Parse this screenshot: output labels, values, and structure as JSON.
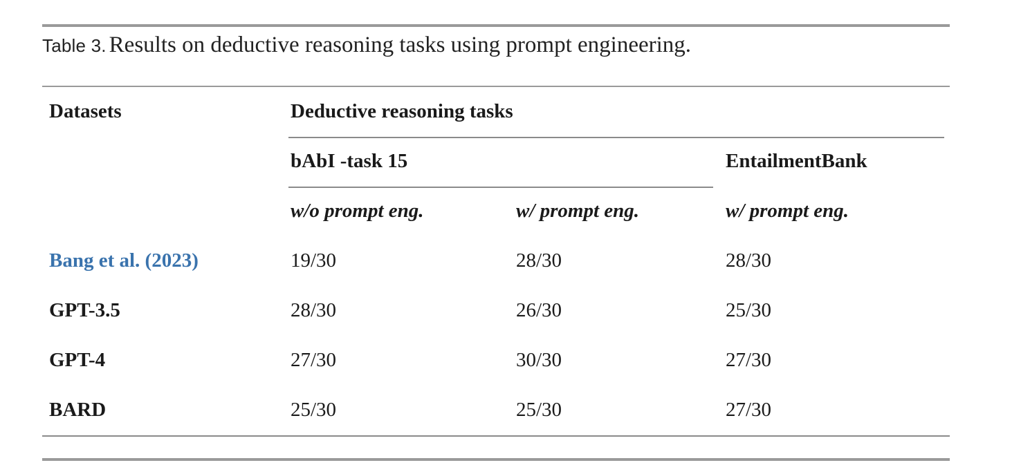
{
  "caption": {
    "label": "Table 3.",
    "text": "Results on deductive reasoning tasks using prompt engineering."
  },
  "header": {
    "datasets": "Datasets",
    "group": "Deductive reasoning tasks",
    "babi": "bAbI -task 15",
    "entailment": "EntailmentBank",
    "sub_babi_wo": "w/o prompt eng.",
    "sub_babi_w": "w/ prompt eng.",
    "sub_entail_w": "w/ prompt eng."
  },
  "rows": [
    {
      "model": "Bang et al. (2023)",
      "is_link": true,
      "babi_wo": "19/30",
      "babi_w": "28/30",
      "entail_w": "28/30"
    },
    {
      "model": "GPT-3.5",
      "is_link": false,
      "babi_wo": "28/30",
      "babi_w": "26/30",
      "entail_w": "25/30"
    },
    {
      "model": "GPT-4",
      "is_link": false,
      "babi_wo": "27/30",
      "babi_w": "30/30",
      "entail_w": "27/30"
    },
    {
      "model": "BARD",
      "is_link": false,
      "babi_wo": "25/30",
      "babi_w": "25/30",
      "entail_w": "27/30"
    }
  ],
  "colors": {
    "link": "#3a73ad",
    "rule": "#9a9a9a",
    "text": "#1a1a1a"
  }
}
